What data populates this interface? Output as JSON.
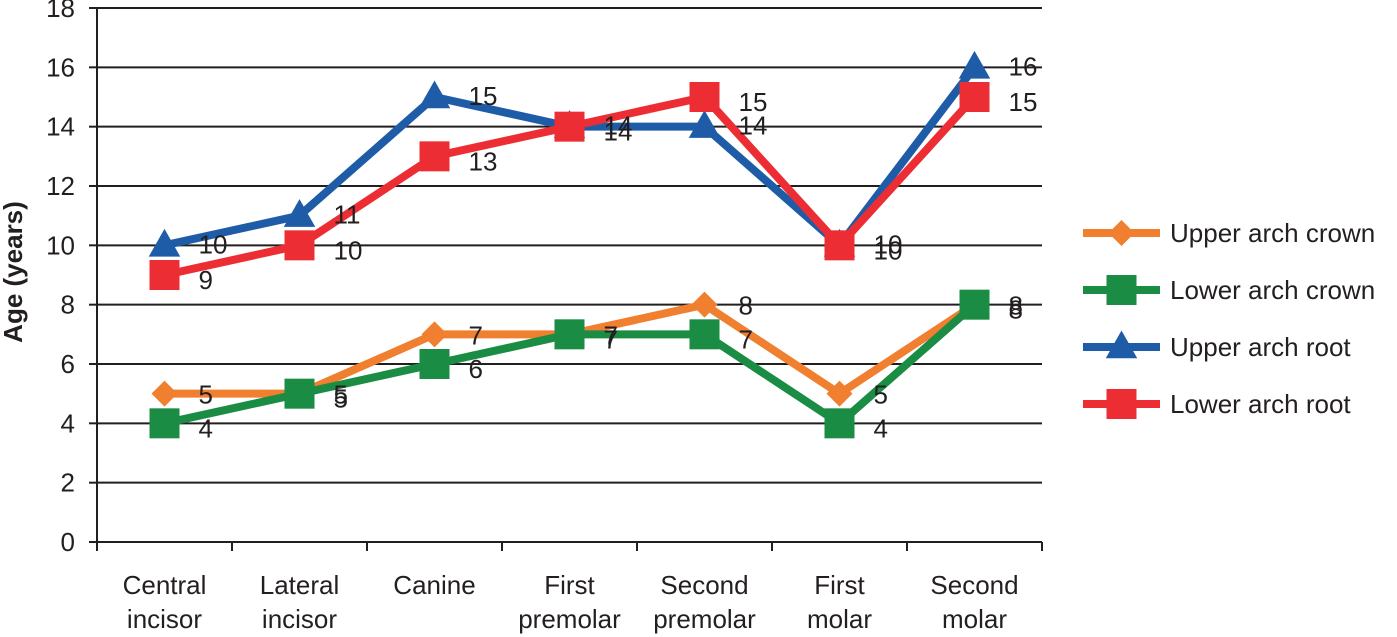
{
  "chart_data": {
    "type": "line",
    "title": "",
    "xlabel": "",
    "ylabel": "Age (years)",
    "ylim": [
      0,
      18
    ],
    "yticks": [
      0,
      2,
      4,
      6,
      8,
      10,
      12,
      14,
      16,
      18
    ],
    "grid": "horizontal",
    "legend_position": "right",
    "categories": [
      [
        "Central",
        "incisor"
      ],
      [
        "Lateral",
        "incisor"
      ],
      [
        "Canine"
      ],
      [
        "First",
        "premolar"
      ],
      [
        "Second",
        "premolar"
      ],
      [
        "First",
        "molar"
      ],
      [
        "Second",
        "molar"
      ]
    ],
    "series": [
      {
        "name": "Upper arch crown",
        "color": "#f07f2f",
        "marker": "diamond",
        "values": [
          5,
          5,
          7,
          7,
          8,
          5,
          8
        ]
      },
      {
        "name": "Lower arch crown",
        "color": "#1a8c43",
        "marker": "square",
        "values": [
          4,
          5,
          6,
          7,
          7,
          4,
          8
        ]
      },
      {
        "name": "Upper arch root",
        "color": "#1f5ca8",
        "marker": "triangle",
        "values": [
          10,
          11,
          15,
          14,
          14,
          10,
          16
        ]
      },
      {
        "name": "Lower arch root",
        "color": "#ec2e34",
        "marker": "square",
        "values": [
          9,
          10,
          13,
          14,
          15,
          10,
          15
        ]
      }
    ]
  }
}
